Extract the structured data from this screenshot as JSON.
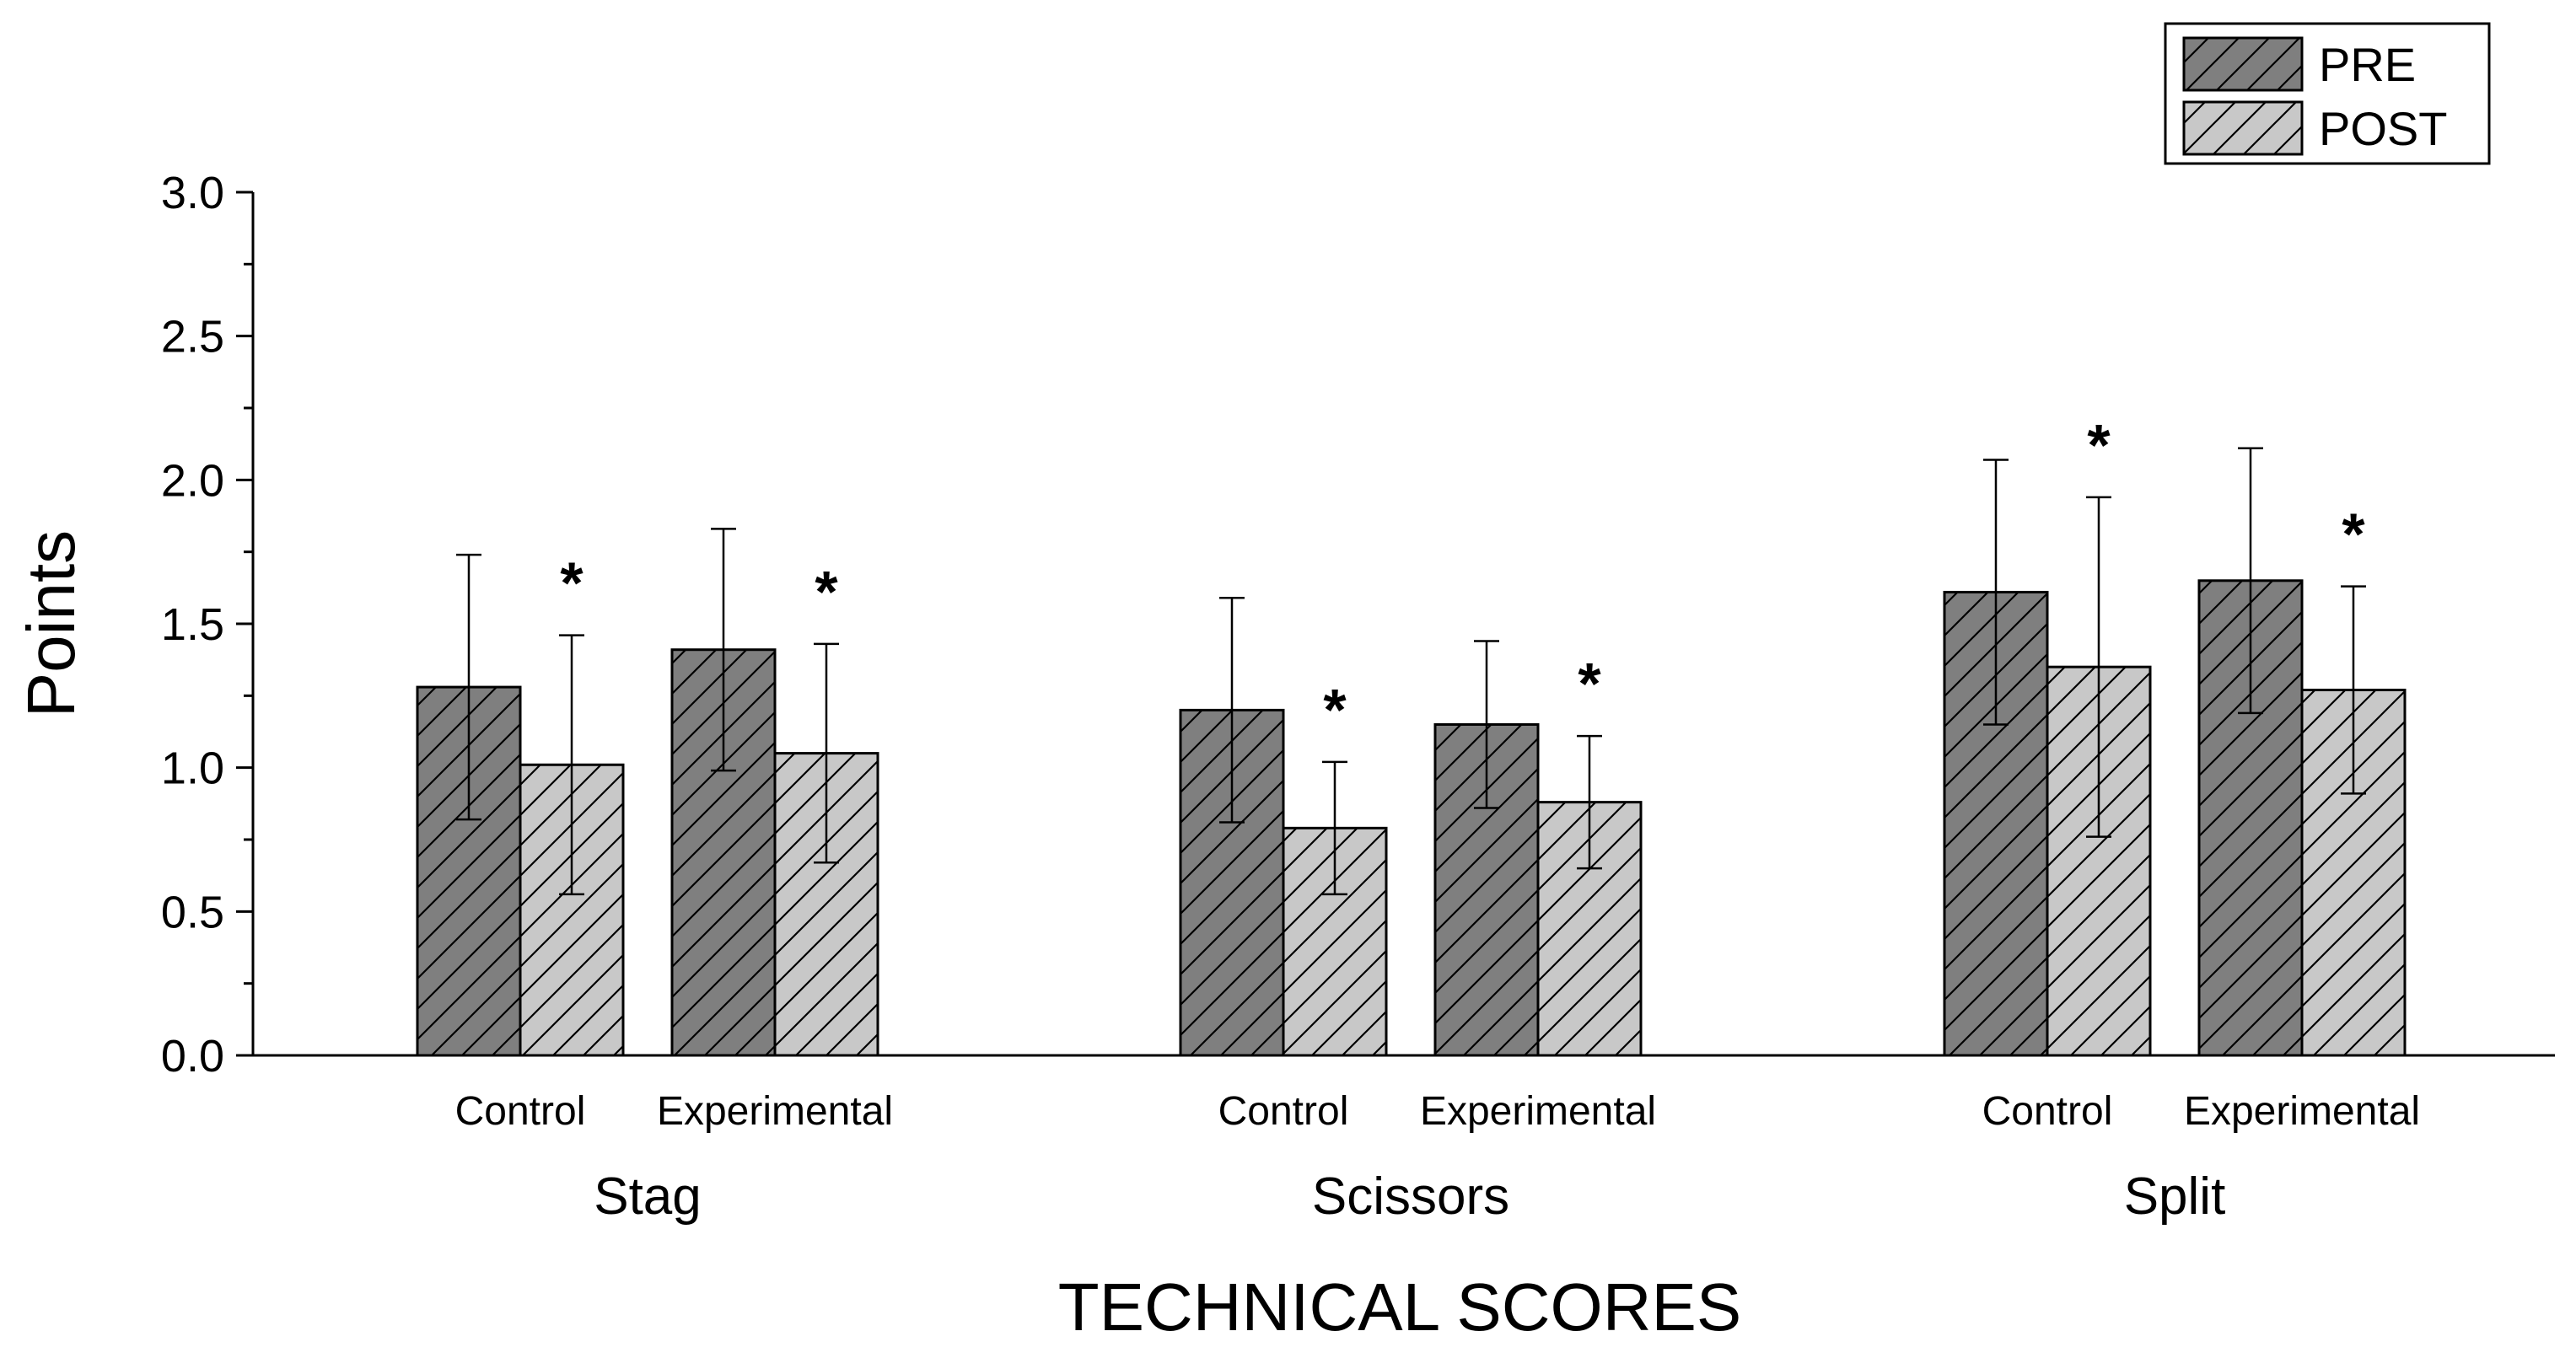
{
  "chart_data": {
    "type": "bar",
    "title": "",
    "xlabel": "TECHNICAL SCORES",
    "ylabel": "Points",
    "ylim": [
      0,
      3.0
    ],
    "yticks": [
      "0.0",
      "0.5",
      "1.0",
      "1.5",
      "2.0",
      "2.5",
      "3.0"
    ],
    "grid": false,
    "legend_position": "top-right",
    "categories": [
      "Stag",
      "Scissors",
      "Split"
    ],
    "groups": [
      "Control",
      "Experimental"
    ],
    "series": [
      {
        "name": "PRE",
        "color": "#7f7f7f",
        "values": [
          [
            1.28,
            1.41
          ],
          [
            1.2,
            1.15
          ],
          [
            1.61,
            1.65
          ]
        ],
        "errors": [
          [
            0.46,
            0.42
          ],
          [
            0.39,
            0.29
          ],
          [
            0.46,
            0.46
          ]
        ]
      },
      {
        "name": "POST",
        "color": "#c8c8c8",
        "values": [
          [
            1.01,
            1.05
          ],
          [
            0.79,
            0.88
          ],
          [
            1.35,
            1.27
          ]
        ],
        "errors": [
          [
            0.45,
            0.38
          ],
          [
            0.23,
            0.23
          ],
          [
            0.59,
            0.36
          ]
        ]
      }
    ],
    "significance_marker": "*",
    "significance": [
      [
        true,
        true
      ],
      [
        true,
        true
      ],
      [
        true,
        true
      ]
    ]
  }
}
